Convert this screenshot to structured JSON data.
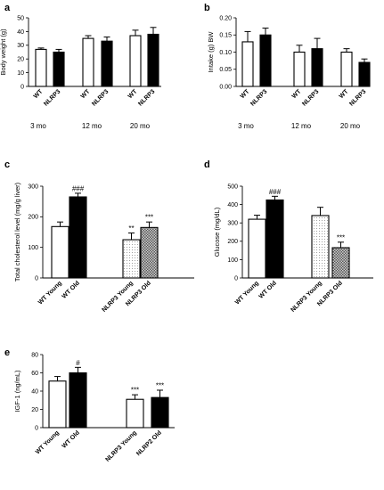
{
  "chart_data": [
    {
      "panel": "a",
      "type": "bar",
      "ylabel": "Body weight  (g)",
      "ylim": [
        0,
        50
      ],
      "yticks": [
        0,
        10,
        20,
        30,
        40,
        50
      ],
      "groups": [
        "3 mo",
        "12 mo",
        "20 mo"
      ],
      "bars": [
        {
          "label": "WT",
          "group": "3 mo",
          "value": 27,
          "error": 1,
          "fill": "white",
          "sig": ""
        },
        {
          "label": "NLRP3",
          "group": "3 mo",
          "value": 25,
          "error": 2,
          "fill": "black",
          "sig": ""
        },
        {
          "label": "WT",
          "group": "12 mo",
          "value": 35,
          "error": 2,
          "fill": "white",
          "sig": ""
        },
        {
          "label": "NLRP3",
          "group": "12 mo",
          "value": 33,
          "error": 3,
          "fill": "black",
          "sig": ""
        },
        {
          "label": "WT",
          "group": "20 mo",
          "value": 37,
          "error": 4,
          "fill": "white",
          "sig": ""
        },
        {
          "label": "NLRP3",
          "group": "20 mo",
          "value": 38,
          "error": 5,
          "fill": "black",
          "sig": ""
        }
      ]
    },
    {
      "panel": "b",
      "type": "bar",
      "ylabel": "Intake (g) BW",
      "ylim": [
        0,
        0.2
      ],
      "yticks": [
        "0.00",
        "0.05",
        "0.10",
        "0.15",
        "0.20"
      ],
      "groups": [
        "3 mo",
        "12 mo",
        "20 mo"
      ],
      "bars": [
        {
          "label": "WT",
          "group": "3 mo",
          "value": 0.13,
          "error": 0.03,
          "fill": "white",
          "sig": ""
        },
        {
          "label": "NLRP3",
          "group": "3 mo",
          "value": 0.15,
          "error": 0.02,
          "fill": "black",
          "sig": ""
        },
        {
          "label": "WT",
          "group": "12 mo",
          "value": 0.1,
          "error": 0.02,
          "fill": "white",
          "sig": ""
        },
        {
          "label": "NLRP3",
          "group": "12 mo",
          "value": 0.11,
          "error": 0.03,
          "fill": "black",
          "sig": ""
        },
        {
          "label": "WT",
          "group": "20 mo",
          "value": 0.1,
          "error": 0.01,
          "fill": "white",
          "sig": ""
        },
        {
          "label": "NLRP3",
          "group": "20 mo",
          "value": 0.07,
          "error": 0.01,
          "fill": "black",
          "sig": ""
        }
      ]
    },
    {
      "panel": "c",
      "type": "bar",
      "ylabel": "Total cholesterol level (mg/g liver)",
      "ylim": [
        0,
        300
      ],
      "yticks": [
        0,
        100,
        200,
        300
      ],
      "groups": [],
      "bars": [
        {
          "label": "WT Young",
          "value": 168,
          "error": 15,
          "fill": "white",
          "sig": ""
        },
        {
          "label": "WT Old",
          "value": 265,
          "error": 12,
          "fill": "black",
          "sig": "###"
        },
        {
          "label": "NLRP3 Young",
          "value": 125,
          "error": 22,
          "fill": "dots",
          "sig": "**"
        },
        {
          "label": "NLRP3 Old",
          "value": 165,
          "error": 18,
          "fill": "checker",
          "sig": "***"
        }
      ]
    },
    {
      "panel": "d",
      "type": "bar",
      "ylabel": "Glucose (mg/dL)",
      "ylim": [
        0,
        500
      ],
      "yticks": [
        0,
        100,
        200,
        300,
        400,
        500
      ],
      "groups": [],
      "bars": [
        {
          "label": "WT Young",
          "value": 320,
          "error": 22,
          "fill": "white",
          "sig": ""
        },
        {
          "label": "WT Old",
          "value": 425,
          "error": 20,
          "fill": "black",
          "sig": "###"
        },
        {
          "label": "NLRP3 Young",
          "value": 340,
          "error": 45,
          "fill": "dots",
          "sig": ""
        },
        {
          "label": "NLRP3 Old",
          "value": 165,
          "error": 30,
          "fill": "checker",
          "sig": "***"
        }
      ]
    },
    {
      "panel": "e",
      "type": "bar",
      "ylabel": "IGF-1 (ng/mL)",
      "ylim": [
        0,
        80
      ],
      "yticks": [
        0,
        20,
        40,
        60,
        80
      ],
      "groups": [],
      "bars": [
        {
          "label": "WT Young",
          "value": 51,
          "error": 5,
          "fill": "white",
          "sig": ""
        },
        {
          "label": "WT Old",
          "value": 60,
          "error": 6,
          "fill": "black",
          "sig": "#"
        },
        {
          "label": "NLRP3 Young",
          "value": 31,
          "error": 5,
          "fill": "white",
          "sig": "***"
        },
        {
          "label": "NLRP2 Old",
          "value": 33,
          "error": 8,
          "fill": "black",
          "sig": "***"
        }
      ]
    }
  ]
}
